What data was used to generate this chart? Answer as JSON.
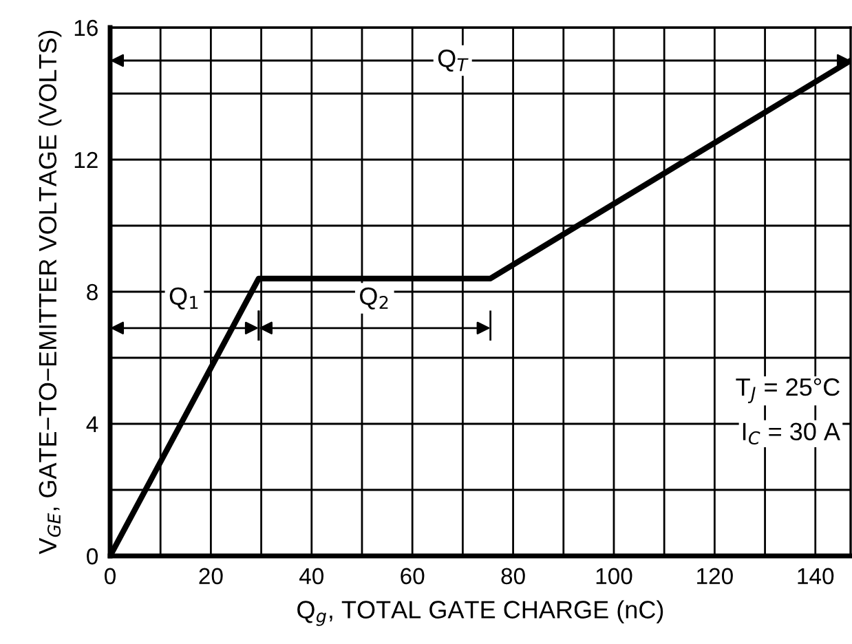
{
  "chart_data": {
    "type": "line",
    "xlabel": "Q$_{g}$, TOTAL GATE CHARGE (nC)",
    "ylabel": "V$_{GE}$, GATE−TO−EMITTER VOLTAGE (VOLTS)",
    "x": [
      0,
      29.5,
      75.5,
      147
    ],
    "series": [
      {
        "color": "#000000",
        "values": [
          0,
          8.4,
          8.4,
          15
        ]
      }
    ],
    "xlim": [
      0,
      147
    ],
    "ylim": [
      0,
      16
    ],
    "xticks": [
      0,
      {
        "value": 10,
        "label": null
      },
      20,
      {
        "value": 30,
        "label": null
      },
      40,
      {
        "value": 50,
        "label": null
      },
      60,
      {
        "value": 70,
        "label": null
      },
      80,
      {
        "value": 90,
        "label": null
      },
      100,
      {
        "value": 110,
        "label": null
      },
      120,
      {
        "value": 130,
        "label": null
      },
      140
    ],
    "yticks": [
      0,
      {
        "value": 2,
        "label": null
      },
      4,
      {
        "value": 6,
        "label": null
      },
      8,
      {
        "value": 10,
        "label": null
      },
      12,
      {
        "value": 14,
        "label": null
      },
      16
    ],
    "grid": true,
    "line_style": "solid",
    "marker": "none",
    "legend": false,
    "annotations": [
      "Q$_{1}$",
      "Q$_{2}$",
      "Q$_{T}$",
      "T$_{J}$ = 25°C",
      "I$_{C}$ = 30 A"
    ]
  }
}
